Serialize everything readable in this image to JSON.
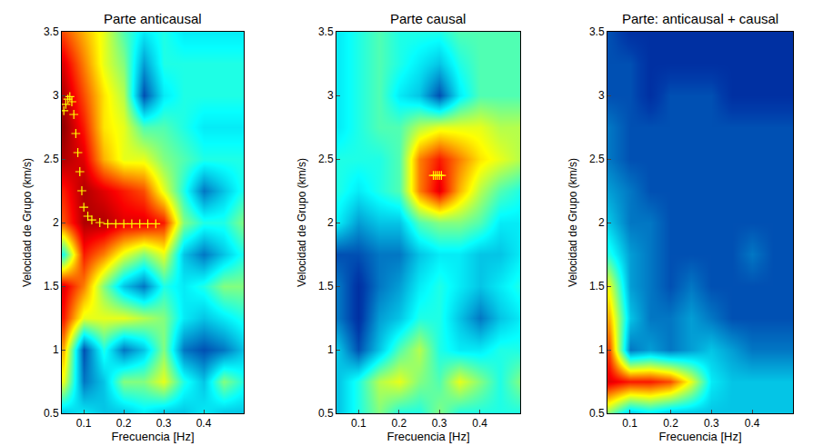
{
  "chart_data": [
    {
      "type": "heatmap",
      "title": "Parte anticausal",
      "x_label": "Frecuencia [Hz]",
      "y_label": "Velocidad de Grupo (km/s)",
      "xlim": [
        0.045,
        0.5
      ],
      "xticks": [
        0.1,
        0.2,
        0.3,
        0.4
      ],
      "ylim": [
        0.5,
        3.5
      ],
      "yticks": [
        0.5,
        1,
        1.5,
        2,
        2.5,
        3,
        3.5
      ],
      "zlim": [
        0,
        1
      ],
      "x": [
        0.05,
        0.1,
        0.15,
        0.2,
        0.25,
        0.3,
        0.35,
        0.4,
        0.45,
        0.5
      ],
      "y": [
        0.5,
        0.75,
        1.0,
        1.25,
        1.5,
        1.75,
        2.0,
        2.25,
        2.5,
        2.75,
        3.0,
        3.25,
        3.5
      ],
      "z": [
        [
          0.3,
          0.35,
          0.3,
          0.3,
          0.35,
          0.3,
          0.3,
          0.35,
          0.3,
          0.3
        ],
        [
          0.6,
          0.2,
          0.3,
          0.5,
          0.5,
          0.6,
          0.4,
          0.3,
          0.5,
          0.4
        ],
        [
          0.7,
          0.15,
          0.4,
          0.2,
          0.3,
          0.5,
          0.2,
          0.15,
          0.2,
          0.3
        ],
        [
          0.85,
          0.6,
          0.6,
          0.6,
          0.55,
          0.5,
          0.35,
          0.3,
          0.35,
          0.4
        ],
        [
          0.9,
          0.75,
          0.5,
          0.3,
          0.2,
          0.4,
          0.35,
          0.4,
          0.5,
          0.5
        ],
        [
          0.4,
          0.85,
          0.75,
          0.6,
          0.5,
          0.6,
          0.3,
          0.2,
          0.3,
          0.4
        ],
        [
          0.8,
          0.95,
          0.95,
          0.9,
          0.9,
          0.85,
          0.5,
          0.4,
          0.4,
          0.5
        ],
        [
          0.85,
          0.95,
          0.9,
          0.85,
          0.8,
          0.6,
          0.4,
          0.2,
          0.3,
          0.4
        ],
        [
          0.95,
          0.9,
          0.7,
          0.6,
          0.6,
          0.5,
          0.45,
          0.4,
          0.4,
          0.4
        ],
        [
          0.98,
          0.85,
          0.65,
          0.6,
          0.45,
          0.45,
          0.4,
          0.35,
          0.35,
          0.35
        ],
        [
          0.95,
          0.8,
          0.65,
          0.55,
          0.15,
          0.35,
          0.4,
          0.4,
          0.4,
          0.4
        ],
        [
          0.9,
          0.75,
          0.6,
          0.5,
          0.25,
          0.4,
          0.4,
          0.4,
          0.4,
          0.4
        ],
        [
          0.8,
          0.7,
          0.6,
          0.45,
          0.35,
          0.4,
          0.35,
          0.35,
          0.35,
          0.35
        ]
      ],
      "series": [
        {
          "type": "scatter",
          "color": "#ffff00",
          "marker": "plus",
          "x": [
            0.05,
            0.055,
            0.06,
            0.065,
            0.07,
            0.075,
            0.08,
            0.085,
            0.09,
            0.095,
            0.1,
            0.11,
            0.12,
            0.14,
            0.16,
            0.18,
            0.2,
            0.22,
            0.24,
            0.26,
            0.28
          ],
          "values": [
            2.88,
            2.93,
            2.97,
            2.99,
            2.95,
            2.85,
            2.7,
            2.55,
            2.4,
            2.25,
            2.12,
            2.05,
            2.02,
            2.0,
            1.99,
            1.99,
            1.99,
            1.99,
            1.99,
            1.99,
            1.99
          ]
        }
      ]
    },
    {
      "type": "heatmap",
      "title": "Parte causal",
      "x_label": "Frecuencia [Hz]",
      "y_label": "Velocidad de Grupo (km/s)",
      "xlim": [
        0.045,
        0.5
      ],
      "xticks": [
        0.1,
        0.2,
        0.3,
        0.4
      ],
      "ylim": [
        0.5,
        3.5
      ],
      "yticks": [
        0.5,
        1,
        1.5,
        2,
        2.5,
        3,
        3.5
      ],
      "zlim": [
        0,
        1
      ],
      "x": [
        0.05,
        0.1,
        0.15,
        0.2,
        0.25,
        0.3,
        0.35,
        0.4,
        0.45,
        0.5
      ],
      "y": [
        0.5,
        0.75,
        1.0,
        1.25,
        1.5,
        1.75,
        2.0,
        2.25,
        2.5,
        2.75,
        3.0,
        3.25,
        3.5
      ],
      "z": [
        [
          0.3,
          0.4,
          0.5,
          0.4,
          0.4,
          0.5,
          0.4,
          0.4,
          0.4,
          0.4
        ],
        [
          0.3,
          0.4,
          0.55,
          0.6,
          0.5,
          0.45,
          0.6,
          0.5,
          0.4,
          0.5
        ],
        [
          0.3,
          0.15,
          0.3,
          0.45,
          0.55,
          0.4,
          0.35,
          0.35,
          0.4,
          0.4
        ],
        [
          0.2,
          0.1,
          0.25,
          0.3,
          0.4,
          0.4,
          0.3,
          0.2,
          0.3,
          0.35
        ],
        [
          0.2,
          0.1,
          0.2,
          0.25,
          0.35,
          0.4,
          0.35,
          0.3,
          0.35,
          0.4
        ],
        [
          0.15,
          0.15,
          0.2,
          0.2,
          0.3,
          0.35,
          0.35,
          0.3,
          0.3,
          0.35
        ],
        [
          0.35,
          0.25,
          0.3,
          0.3,
          0.45,
          0.5,
          0.5,
          0.45,
          0.35,
          0.35
        ],
        [
          0.4,
          0.35,
          0.4,
          0.45,
          0.75,
          0.9,
          0.7,
          0.55,
          0.45,
          0.4
        ],
        [
          0.4,
          0.4,
          0.4,
          0.45,
          0.75,
          0.85,
          0.75,
          0.65,
          0.6,
          0.55
        ],
        [
          0.35,
          0.4,
          0.45,
          0.45,
          0.55,
          0.6,
          0.6,
          0.6,
          0.55,
          0.55
        ],
        [
          0.35,
          0.4,
          0.45,
          0.35,
          0.3,
          0.15,
          0.35,
          0.45,
          0.45,
          0.45
        ],
        [
          0.35,
          0.4,
          0.45,
          0.4,
          0.35,
          0.3,
          0.4,
          0.45,
          0.45,
          0.45
        ],
        [
          0.35,
          0.4,
          0.45,
          0.4,
          0.4,
          0.4,
          0.45,
          0.45,
          0.45,
          0.45
        ]
      ],
      "series": [
        {
          "type": "scatter",
          "color": "#ffff00",
          "marker": "plus",
          "x": [
            0.285,
            0.29,
            0.295,
            0.3,
            0.305
          ],
          "values": [
            2.37,
            2.37,
            2.37,
            2.37,
            2.37
          ]
        }
      ]
    },
    {
      "type": "heatmap",
      "title": "Parte: anticausal + causal",
      "x_label": "Frecuencia [Hz]",
      "y_label": "Velocidad de Grupo (km/s)",
      "xlim": [
        0.045,
        0.5
      ],
      "xticks": [
        0.1,
        0.2,
        0.3,
        0.4
      ],
      "ylim": [
        0.5,
        3.5
      ],
      "yticks": [
        0.5,
        1,
        1.5,
        2,
        2.5,
        3,
        3.5
      ],
      "zlim": [
        0,
        1
      ],
      "x": [
        0.05,
        0.1,
        0.15,
        0.2,
        0.25,
        0.3,
        0.35,
        0.4,
        0.45,
        0.5
      ],
      "y": [
        0.5,
        0.75,
        1.0,
        1.25,
        1.5,
        1.75,
        2.0,
        2.25,
        2.5,
        2.75,
        3.0,
        3.25,
        3.5
      ],
      "z": [
        [
          0.5,
          0.3,
          0.35,
          0.3,
          0.3,
          0.3,
          0.3,
          0.3,
          0.3,
          0.3
        ],
        [
          0.9,
          0.85,
          0.85,
          0.8,
          0.6,
          0.35,
          0.3,
          0.3,
          0.3,
          0.3
        ],
        [
          0.8,
          0.2,
          0.25,
          0.2,
          0.25,
          0.3,
          0.25,
          0.2,
          0.2,
          0.2
        ],
        [
          0.7,
          0.3,
          0.2,
          0.2,
          0.25,
          0.2,
          0.15,
          0.15,
          0.15,
          0.15
        ],
        [
          0.6,
          0.25,
          0.2,
          0.15,
          0.2,
          0.15,
          0.15,
          0.15,
          0.15,
          0.15
        ],
        [
          0.4,
          0.25,
          0.2,
          0.15,
          0.15,
          0.15,
          0.15,
          0.2,
          0.15,
          0.15
        ],
        [
          0.3,
          0.2,
          0.2,
          0.15,
          0.15,
          0.15,
          0.15,
          0.15,
          0.15,
          0.15
        ],
        [
          0.25,
          0.2,
          0.15,
          0.15,
          0.15,
          0.15,
          0.15,
          0.15,
          0.15,
          0.15
        ],
        [
          0.2,
          0.15,
          0.15,
          0.15,
          0.15,
          0.15,
          0.15,
          0.15,
          0.15,
          0.15
        ],
        [
          0.2,
          0.15,
          0.15,
          0.15,
          0.15,
          0.15,
          0.15,
          0.15,
          0.15,
          0.15
        ],
        [
          0.15,
          0.15,
          0.1,
          0.15,
          0.15,
          0.15,
          0.1,
          0.1,
          0.1,
          0.1
        ],
        [
          0.15,
          0.15,
          0.1,
          0.1,
          0.1,
          0.1,
          0.1,
          0.1,
          0.1,
          0.1
        ],
        [
          0.15,
          0.1,
          0.1,
          0.1,
          0.1,
          0.1,
          0.1,
          0.1,
          0.1,
          0.1
        ]
      ]
    }
  ]
}
